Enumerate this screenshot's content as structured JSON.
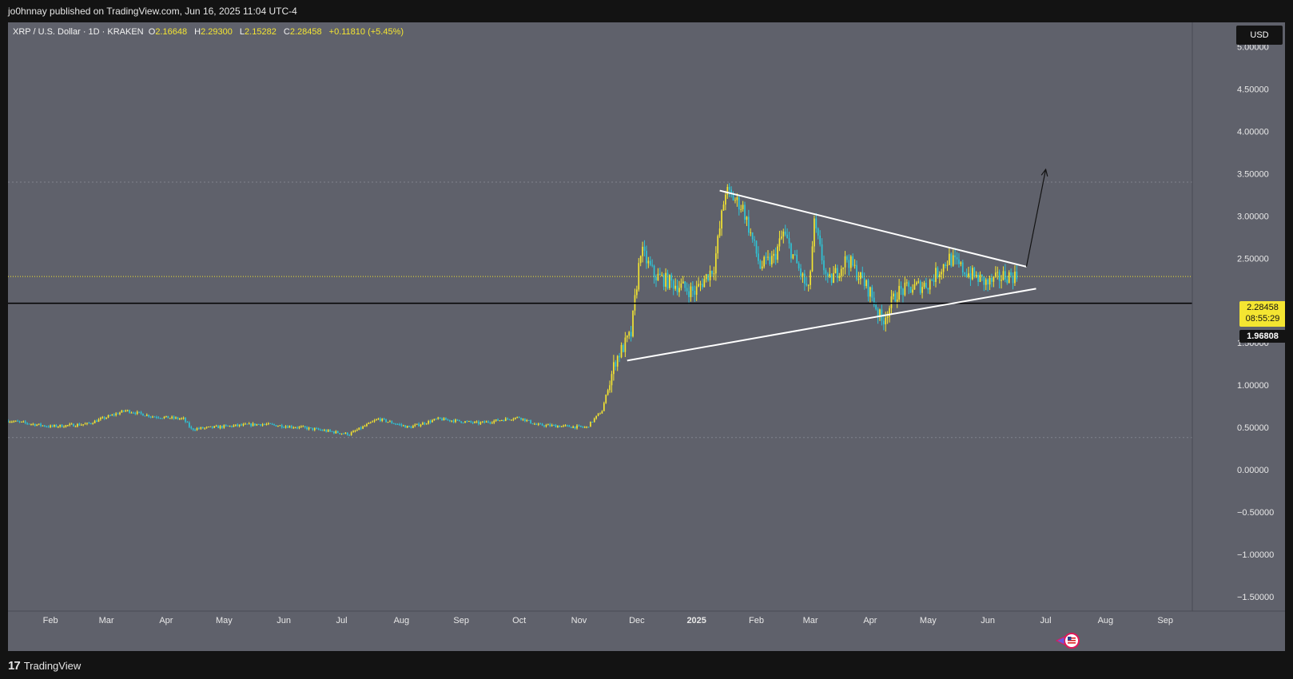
{
  "header": {
    "published_text": "jo0hnnay published on TradingView.com, Jun 16, 2025 11:04 UTC-4"
  },
  "legend": {
    "symbol": "XRP / U.S. Dollar · 1D · KRAKEN",
    "open_label": "O",
    "open": "2.16648",
    "high_label": "H",
    "high": "2.29300",
    "low_label": "L",
    "low": "2.15282",
    "close_label": "C",
    "close": "2.28458",
    "change": "+0.11810 (+5.45%)"
  },
  "currency_button": "USD",
  "price_tag": {
    "price": "2.28458",
    "countdown": "08:55:29"
  },
  "support_tag": "1.96808",
  "footer": {
    "brand": "TradingView",
    "brand_mark": "17"
  },
  "colors": {
    "background": "#5f616b",
    "up": "#f4e531",
    "down": "#2ec4d6",
    "support": "#000000",
    "trendline": "#ffffff"
  },
  "chart_data": {
    "type": "candlestick",
    "symbol": "XRP/USD",
    "interval": "1D",
    "exchange": "KRAKEN",
    "y_ticks": [
      5.0,
      4.5,
      4.0,
      3.5,
      3.0,
      2.5,
      2.0,
      1.5,
      1.0,
      0.5,
      0.0,
      -0.5,
      -1.0,
      -1.5
    ],
    "y_tick_labels": [
      "5.00000",
      "4.50000",
      "4.00000",
      "3.50000",
      "3.00000",
      "2.50000",
      "",
      "1.50000",
      "1.00000",
      "0.50000",
      "0.00000",
      "−0.50000",
      "−1.00000",
      "−1.50000"
    ],
    "ylim": [
      -1.7,
      5.1
    ],
    "x_ticks": [
      "2024-02-01",
      "2024-03-01",
      "2024-04-01",
      "2024-05-01",
      "2024-06-01",
      "2024-07-01",
      "2024-08-01",
      "2024-09-01",
      "2024-10-01",
      "2024-11-01",
      "2024-12-01",
      "2025-01-01",
      "2025-02-01",
      "2025-03-01",
      "2025-04-01",
      "2025-05-01",
      "2025-06-01",
      "2025-07-01",
      "2025-08-01",
      "2025-09-01"
    ],
    "x_tick_labels": [
      "Feb",
      "Mar",
      "Apr",
      "May",
      "Jun",
      "Jul",
      "Aug",
      "Sep",
      "Oct",
      "Nov",
      "Dec",
      "2025",
      "Feb",
      "Mar",
      "Apr",
      "May",
      "Jun",
      "Jul",
      "Aug",
      "Sep"
    ],
    "xlim": [
      "2024-01-10",
      "2025-09-15"
    ],
    "price_path": [
      [
        "2024-01-10",
        0.58
      ],
      [
        "2024-02-01",
        0.51
      ],
      [
        "2024-02-20",
        0.54
      ],
      [
        "2024-03-11",
        0.7
      ],
      [
        "2024-03-25",
        0.63
      ],
      [
        "2024-04-10",
        0.6
      ],
      [
        "2024-04-14",
        0.48
      ],
      [
        "2024-05-01",
        0.51
      ],
      [
        "2024-05-20",
        0.54
      ],
      [
        "2024-06-10",
        0.5
      ],
      [
        "2024-07-05",
        0.42
      ],
      [
        "2024-07-20",
        0.6
      ],
      [
        "2024-08-05",
        0.5
      ],
      [
        "2024-08-20",
        0.6
      ],
      [
        "2024-09-10",
        0.55
      ],
      [
        "2024-10-01",
        0.62
      ],
      [
        "2024-10-10",
        0.53
      ],
      [
        "2024-11-05",
        0.5
      ],
      [
        "2024-11-13",
        0.7
      ],
      [
        "2024-11-20",
        1.3
      ],
      [
        "2024-11-28",
        1.6
      ],
      [
        "2024-12-01",
        2.2
      ],
      [
        "2024-12-03",
        2.6
      ],
      [
        "2024-12-10",
        2.3
      ],
      [
        "2024-12-20",
        2.2
      ],
      [
        "2024-12-31",
        2.1
      ],
      [
        "2025-01-10",
        2.4
      ],
      [
        "2025-01-16",
        3.3
      ],
      [
        "2025-01-25",
        3.1
      ],
      [
        "2025-02-03",
        2.4
      ],
      [
        "2025-02-10",
        2.5
      ],
      [
        "2025-02-15",
        2.8
      ],
      [
        "2025-02-28",
        2.1
      ],
      [
        "2025-03-03",
        2.9
      ],
      [
        "2025-03-10",
        2.2
      ],
      [
        "2025-03-20",
        2.5
      ],
      [
        "2025-04-01",
        2.1
      ],
      [
        "2025-04-07",
        1.75
      ],
      [
        "2025-04-15",
        2.1
      ],
      [
        "2025-05-01",
        2.2
      ],
      [
        "2025-05-12",
        2.5
      ],
      [
        "2025-05-20",
        2.35
      ],
      [
        "2025-06-01",
        2.2
      ],
      [
        "2025-06-10",
        2.3
      ],
      [
        "2025-06-16",
        2.2846
      ]
    ],
    "last_price": 2.28458,
    "support_level": 1.96808,
    "triangle_upper": [
      [
        "2025-01-13",
        3.3
      ],
      [
        "2025-06-21",
        2.4
      ]
    ],
    "triangle_lower": [
      [
        "2024-11-26",
        1.29
      ],
      [
        "2025-06-26",
        2.14
      ]
    ],
    "breakout_arrow": [
      [
        "2025-06-21",
        2.4
      ],
      [
        "2025-07-01",
        3.55
      ]
    ],
    "dashed_levels": [
      3.4,
      0.38
    ]
  }
}
